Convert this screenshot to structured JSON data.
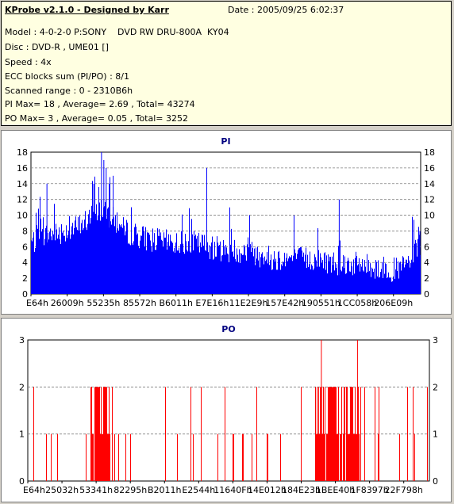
{
  "info": {
    "title": "KProbe v2.1.0 - Designed by Karr",
    "date": "Date : 2005/09/25 6:02:37",
    "lines": [
      "Model : 4-0-2-0 P:SONY    DVD RW DRU-800A  KY04",
      "Disc : DVD-R , UME01 []",
      "Speed : 4x",
      "ECC blocks sum (PI/PO) : 8/1",
      "Scanned range : 0 - 2310B6h",
      "PI Max= 18 , Average= 2.69 , Total= 43274",
      "PO Max= 3 , Average= 0.05 , Total= 3252"
    ]
  },
  "chart_data": [
    {
      "type": "bar",
      "title": "PI",
      "ylim": [
        0,
        18
      ],
      "yticks": [
        0,
        2,
        4,
        6,
        8,
        10,
        12,
        14,
        16,
        18
      ],
      "xtick_labels": [
        "E64h",
        "26009h",
        "55235h",
        "85572h",
        "B6011h",
        "E7E16h",
        "11E2E9h",
        "157E42h",
        "190551h",
        "1CC058h",
        "206E09h"
      ],
      "color": "#0000ff",
      "grid": true,
      "profile": [
        [
          0,
          6.5
        ],
        [
          0.04,
          7.5
        ],
        [
          0.08,
          8
        ],
        [
          0.12,
          8.5
        ],
        [
          0.16,
          10
        ],
        [
          0.18,
          11
        ],
        [
          0.2,
          10
        ],
        [
          0.24,
          8
        ],
        [
          0.3,
          7
        ],
        [
          0.36,
          6.5
        ],
        [
          0.42,
          6.5
        ],
        [
          0.5,
          5.5
        ],
        [
          0.55,
          5.5
        ],
        [
          0.62,
          4.5
        ],
        [
          0.7,
          4.5
        ],
        [
          0.78,
          4
        ],
        [
          0.85,
          3.7
        ],
        [
          0.9,
          3.3
        ],
        [
          0.94,
          3
        ],
        [
          0.97,
          4
        ],
        [
          1,
          6.5
        ]
      ],
      "peaks": [
        [
          0.18,
          18
        ],
        [
          0.186,
          17
        ],
        [
          0.192,
          16
        ],
        [
          0.2,
          14
        ],
        [
          0.21,
          15
        ],
        [
          0.04,
          14
        ],
        [
          0.16,
          14
        ],
        [
          0.45,
          16
        ],
        [
          0.56,
          10
        ],
        [
          0.79,
          12
        ],
        [
          0.997,
          8
        ]
      ]
    },
    {
      "type": "bar",
      "title": "PO",
      "ylim": [
        0,
        3
      ],
      "yticks": [
        0,
        1,
        2,
        3
      ],
      "xtick_labels": [
        "E64h",
        "25032h",
        "53341h",
        "82295h",
        "B2011h",
        "E2544h",
        "11640Fh",
        "14E012h",
        "184E23h",
        "1BEE40h",
        "1F8397h",
        "22F798h"
      ],
      "color": "#ff0000",
      "grid": true,
      "dense_regions": [
        [
          0.155,
          0.205
        ],
        [
          0.715,
          0.83
        ]
      ],
      "peaks": [
        [
          0.73,
          3
        ],
        [
          0.82,
          3
        ]
      ]
    }
  ]
}
